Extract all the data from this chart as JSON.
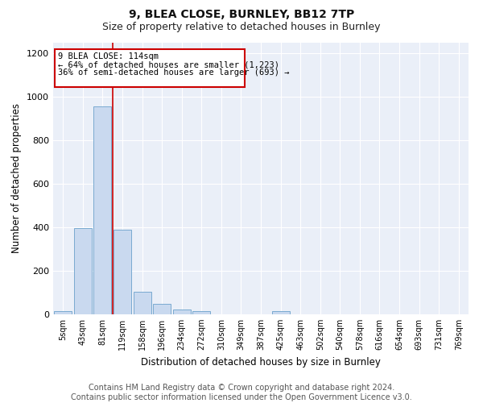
{
  "title1": "9, BLEA CLOSE, BURNLEY, BB12 7TP",
  "title2": "Size of property relative to detached houses in Burnley",
  "xlabel": "Distribution of detached houses by size in Burnley",
  "ylabel": "Number of detached properties",
  "categories": [
    "5sqm",
    "43sqm",
    "81sqm",
    "119sqm",
    "158sqm",
    "196sqm",
    "234sqm",
    "272sqm",
    "310sqm",
    "349sqm",
    "387sqm",
    "425sqm",
    "463sqm",
    "502sqm",
    "540sqm",
    "578sqm",
    "616sqm",
    "654sqm",
    "693sqm",
    "731sqm",
    "769sqm"
  ],
  "values": [
    15,
    395,
    955,
    390,
    105,
    48,
    22,
    15,
    0,
    0,
    0,
    15,
    0,
    0,
    0,
    0,
    0,
    0,
    0,
    0,
    0
  ],
  "bar_color": "#c9d9ef",
  "bar_edge_color": "#7aaad0",
  "vline_color": "#cc0000",
  "annotation_line1": "9 BLEA CLOSE: 114sqm",
  "annotation_line2": "← 64% of detached houses are smaller (1,223)",
  "annotation_line3": "36% of semi-detached houses are larger (693) →",
  "annotation_box_color": "#ffffff",
  "annotation_box_edge": "#cc0000",
  "annotation_fontsize": 7.5,
  "ylim": [
    0,
    1250
  ],
  "yticks": [
    0,
    200,
    400,
    600,
    800,
    1000,
    1200
  ],
  "bg_color": "#eaeff8",
  "footer_text": "Contains HM Land Registry data © Crown copyright and database right 2024.\nContains public sector information licensed under the Open Government Licence v3.0.",
  "title1_fontsize": 10,
  "title2_fontsize": 9,
  "xlabel_fontsize": 8.5,
  "ylabel_fontsize": 8.5,
  "footer_fontsize": 7
}
